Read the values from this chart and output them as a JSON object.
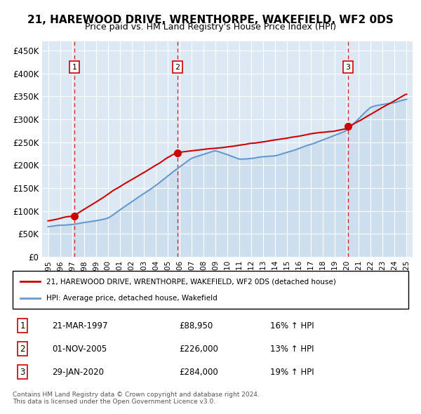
{
  "title": "21, HAREWOOD DRIVE, WRENTHORPE, WAKEFIELD, WF2 0DS",
  "subtitle": "Price paid vs. HM Land Registry's House Price Index (HPI)",
  "background_color": "#dce9f5",
  "plot_bg_color": "#dce9f5",
  "red_line_color": "#cc0000",
  "blue_line_color": "#6699cc",
  "blue_fill_color": "#b8d0e8",
  "grid_color": "#ffffff",
  "dashed_line_color": "#cc0000",
  "sale_points": [
    {
      "date_num": 1997.22,
      "price": 88950,
      "label": "1"
    },
    {
      "date_num": 2005.84,
      "price": 226000,
      "label": "2"
    },
    {
      "date_num": 2020.08,
      "price": 284000,
      "label": "3"
    }
  ],
  "legend_entries": [
    "21, HAREWOOD DRIVE, WRENTHORPE, WAKEFIELD, WF2 0DS (detached house)",
    "HPI: Average price, detached house, Wakefield"
  ],
  "table_rows": [
    {
      "num": "1",
      "date": "21-MAR-1997",
      "price": "£88,950",
      "hpi": "16% ↑ HPI"
    },
    {
      "num": "2",
      "date": "01-NOV-2005",
      "price": "£226,000",
      "hpi": "13% ↑ HPI"
    },
    {
      "num": "3",
      "date": "29-JAN-2020",
      "price": "£284,000",
      "hpi": "19% ↑ HPI"
    }
  ],
  "footer": "Contains HM Land Registry data © Crown copyright and database right 2024.\nThis data is licensed under the Open Government Licence v3.0.",
  "ylim": [
    0,
    470000
  ],
  "xlim": [
    1994.5,
    2025.5
  ],
  "yticks": [
    0,
    50000,
    100000,
    150000,
    200000,
    250000,
    300000,
    350000,
    400000,
    450000
  ],
  "ytick_labels": [
    "£0",
    "£50K",
    "£100K",
    "£150K",
    "£200K",
    "£250K",
    "£300K",
    "£350K",
    "£400K",
    "£450K"
  ],
  "xticks": [
    1995,
    1996,
    1997,
    1998,
    1999,
    2000,
    2001,
    2002,
    2003,
    2004,
    2005,
    2006,
    2007,
    2008,
    2009,
    2010,
    2011,
    2012,
    2013,
    2014,
    2015,
    2016,
    2017,
    2018,
    2019,
    2020,
    2021,
    2022,
    2023,
    2024,
    2025
  ]
}
